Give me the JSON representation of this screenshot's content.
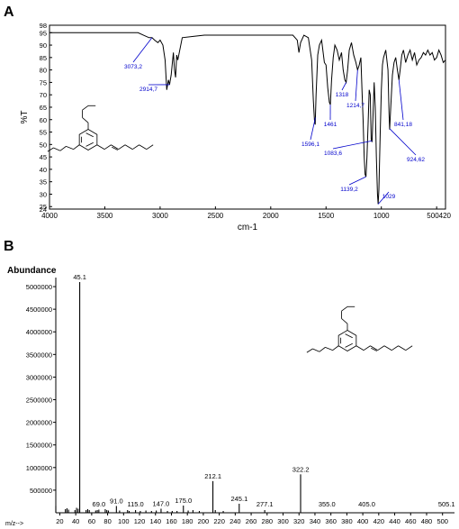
{
  "panels": {
    "a_label": "A",
    "b_label": "B"
  },
  "chart_data": [
    {
      "type": "line",
      "title": "",
      "xlabel": "cm-1",
      "ylabel": "%T",
      "xlim": [
        4000,
        420
      ],
      "ylim": [
        24,
        98
      ],
      "x_reversed": true,
      "grid": false,
      "x_ticks": [
        "4000",
        "3500",
        "3000",
        "2500",
        "2000",
        "1500",
        "1000",
        "500420"
      ],
      "y_ticks": [
        "24",
        "25",
        "30",
        "35",
        "40",
        "45",
        "50",
        "55",
        "60",
        "65",
        "70",
        "75",
        "80",
        "85",
        "90",
        "95",
        "98"
      ],
      "line_color": "#000000",
      "annotation_color": "#0000cc",
      "series": [
        {
          "x": [
            4000,
            3800,
            3600,
            3400,
            3300,
            3200,
            3150,
            3100,
            3073,
            3050,
            3020,
            3000,
            2975,
            2955,
            2940,
            2925,
            2915,
            2900,
            2880,
            2870,
            2860,
            2850,
            2840,
            2800,
            2700,
            2600,
            2500,
            2400,
            2300,
            2200,
            2100,
            2000,
            1900,
            1800,
            1760,
            1745,
            1730,
            1700,
            1660,
            1630,
            1615,
            1605,
            1598,
            1590,
            1575,
            1560,
            1540,
            1515,
            1500,
            1485,
            1470,
            1461,
            1450,
            1435,
            1420,
            1400,
            1380,
            1360,
            1345,
            1330,
            1318,
            1305,
            1290,
            1270,
            1250,
            1230,
            1215,
            1200,
            1185,
            1175,
            1165,
            1155,
            1147,
            1139,
            1130,
            1120,
            1110,
            1100,
            1092,
            1084,
            1075,
            1065,
            1055,
            1045,
            1035,
            1029,
            1022,
            1010,
            1000,
            990,
            980,
            960,
            940,
            930,
            925,
            915,
            900,
            885,
            870,
            855,
            841,
            830,
            815,
            800,
            780,
            760,
            740,
            720,
            700,
            680,
            660,
            640,
            620,
            600,
            580,
            560,
            540,
            520,
            500,
            480,
            460,
            440,
            420
          ],
          "values": [
            95,
            95,
            95,
            95,
            95,
            95,
            94,
            93,
            93,
            92,
            91,
            92,
            90,
            84,
            72,
            76,
            74,
            78,
            87,
            80,
            77,
            86,
            84,
            93,
            93.5,
            94,
            94,
            94,
            94,
            94,
            94,
            94,
            94,
            94,
            92,
            87,
            91,
            94,
            93,
            84,
            68,
            60,
            58,
            70,
            86,
            90,
            92,
            83,
            82,
            73,
            67,
            66,
            76,
            85,
            90,
            88,
            84,
            87,
            80,
            76,
            75,
            80,
            88,
            91,
            86,
            83,
            80,
            82,
            85,
            72,
            60,
            45,
            38,
            37,
            45,
            58,
            72,
            70,
            52,
            51,
            62,
            75,
            65,
            45,
            30,
            26,
            32,
            55,
            72,
            82,
            85,
            88,
            80,
            62,
            56,
            65,
            78,
            83,
            85,
            80,
            76,
            80,
            86,
            88,
            83,
            86,
            88,
            84,
            87,
            82,
            84,
            85,
            87,
            86,
            88,
            86,
            87,
            84,
            85,
            88,
            86,
            83,
            84
          ]
        }
      ],
      "annotations": [
        {
          "label": "3073,2",
          "x": 3073
        },
        {
          "label": "2914,7",
          "x": 2914.7
        },
        {
          "label": "1596,1",
          "x": 1596.1
        },
        {
          "label": "1461",
          "x": 1461
        },
        {
          "label": "1318",
          "x": 1318
        },
        {
          "label": "1214,7",
          "x": 1214.7
        },
        {
          "label": "1083,6",
          "x": 1083.6
        },
        {
          "label": "1139,2",
          "x": 1139.2
        },
        {
          "label": "1029",
          "x": 1029
        },
        {
          "label": "841,18",
          "x": 841.18
        },
        {
          "label": "924,62",
          "x": 924.62
        }
      ]
    },
    {
      "type": "bar",
      "title": "",
      "xlabel": "m/z-->",
      "ylabel": "Abundance",
      "xlim": [
        15,
        515
      ],
      "ylim": [
        0,
        5200000
      ],
      "grid": false,
      "x_ticks": [
        "20",
        "40",
        "60",
        "80",
        "100",
        "120",
        "140",
        "160",
        "180",
        "200",
        "220",
        "240",
        "260",
        "280",
        "300",
        "320",
        "340",
        "360",
        "380",
        "400",
        "420",
        "440",
        "460",
        "480",
        "500"
      ],
      "y_ticks": [
        "500000",
        "1000000",
        "1500000",
        "2000000",
        "2500000",
        "3000000",
        "3500000",
        "4000000",
        "4500000",
        "5000000"
      ],
      "bar_color": "#000000",
      "peaks": {
        "mz": [
          15,
          27,
          29,
          31,
          39,
          41,
          43,
          45,
          53,
          55,
          57,
          65,
          67,
          69,
          77,
          79,
          81,
          91,
          95,
          105,
          107,
          115,
          121,
          128,
          135,
          141,
          147,
          155,
          161,
          167,
          175,
          181,
          187,
          195,
          212,
          215,
          225,
          245,
          277,
          322
        ],
        "values": [
          150000,
          80000,
          100000,
          70000,
          60000,
          110000,
          90000,
          5100000,
          60000,
          80000,
          60000,
          50000,
          60000,
          70000,
          80000,
          60000,
          50000,
          150000,
          50000,
          60000,
          40000,
          60000,
          40000,
          50000,
          40000,
          50000,
          90000,
          40000,
          40000,
          40000,
          160000,
          50000,
          60000,
          40000,
          700000,
          60000,
          40000,
          200000,
          60000,
          850000
        ]
      },
      "peak_labels": [
        {
          "label": "45.1",
          "mz": 45.1,
          "value": 5100000
        },
        {
          "label": "69.0",
          "mz": 69.0,
          "value": 70000
        },
        {
          "label": "91.0",
          "mz": 91.0,
          "value": 150000
        },
        {
          "label": "115.0",
          "mz": 115.0,
          "value": 60000
        },
        {
          "label": "147.0",
          "mz": 147.0,
          "value": 90000
        },
        {
          "label": "175.0",
          "mz": 175.0,
          "value": 160000
        },
        {
          "label": "212.1",
          "mz": 212.1,
          "value": 700000
        },
        {
          "label": "245.1",
          "mz": 245.1,
          "value": 200000
        },
        {
          "label": "277.1",
          "mz": 277.1,
          "value": 60000
        },
        {
          "label": "322.2",
          "mz": 322.2,
          "value": 850000
        },
        {
          "label": "355.0",
          "mz": 355.0,
          "value": 0
        },
        {
          "label": "405.0",
          "mz": 405.0,
          "value": 0
        },
        {
          "label": "505.1",
          "mz": 505.1,
          "value": 0
        }
      ]
    }
  ]
}
